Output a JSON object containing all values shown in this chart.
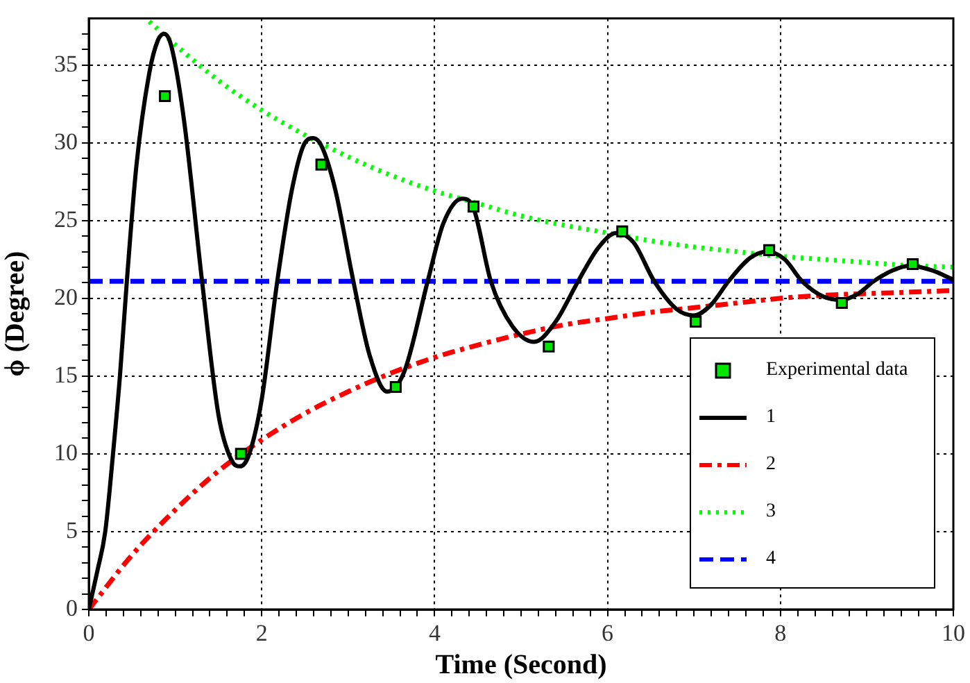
{
  "chart_data": {
    "type": "line",
    "xlabel": "Time (Second)",
    "ylabel": "ϕ (Degree)",
    "xlim": [
      0,
      10
    ],
    "ylim": [
      0,
      38
    ],
    "xticks": [
      0,
      {
        "value": 0.2,
        "label": null
      },
      {
        "value": 0.4,
        "label": null
      },
      {
        "value": 0.6,
        "label": null
      },
      {
        "value": 0.8,
        "label": null
      },
      {
        "value": 1,
        "label": null
      },
      {
        "value": 1.2,
        "label": null
      },
      {
        "value": 1.4,
        "label": null
      },
      {
        "value": 1.6,
        "label": null
      },
      {
        "value": 1.8,
        "label": null
      },
      2,
      {
        "value": 2.2,
        "label": null
      },
      {
        "value": 2.4,
        "label": null
      },
      {
        "value": 2.6,
        "label": null
      },
      {
        "value": 2.8,
        "label": null
      },
      {
        "value": 3,
        "label": null
      },
      {
        "value": 3.2,
        "label": null
      },
      {
        "value": 3.4,
        "label": null
      },
      {
        "value": 3.6,
        "label": null
      },
      {
        "value": 3.8,
        "label": null
      },
      4,
      {
        "value": 4.2,
        "label": null
      },
      {
        "value": 4.4,
        "label": null
      },
      {
        "value": 4.6,
        "label": null
      },
      {
        "value": 4.8,
        "label": null
      },
      {
        "value": 5,
        "label": null
      },
      {
        "value": 5.2,
        "label": null
      },
      {
        "value": 5.4,
        "label": null
      },
      {
        "value": 5.6,
        "label": null
      },
      {
        "value": 5.8,
        "label": null
      },
      6,
      {
        "value": 6.2,
        "label": null
      },
      {
        "value": 6.4,
        "label": null
      },
      {
        "value": 6.6,
        "label": null
      },
      {
        "value": 6.8,
        "label": null
      },
      {
        "value": 7,
        "label": null
      },
      {
        "value": 7.2,
        "label": null
      },
      {
        "value": 7.4,
        "label": null
      },
      {
        "value": 7.6,
        "label": null
      },
      {
        "value": 7.8,
        "label": null
      },
      8,
      {
        "value": 8.2,
        "label": null
      },
      {
        "value": 8.4,
        "label": null
      },
      {
        "value": 8.6,
        "label": null
      },
      {
        "value": 8.8,
        "label": null
      },
      {
        "value": 9,
        "label": null
      },
      {
        "value": 9.2,
        "label": null
      },
      {
        "value": 9.4,
        "label": null
      },
      {
        "value": 9.6,
        "label": null
      },
      {
        "value": 9.8,
        "label": null
      },
      10
    ],
    "yticks": [
      0,
      {
        "value": 1,
        "label": null
      },
      {
        "value": 2,
        "label": null
      },
      {
        "value": 3,
        "label": null
      },
      {
        "value": 4,
        "label": null
      },
      5,
      {
        "value": 6,
        "label": null
      },
      {
        "value": 7,
        "label": null
      },
      {
        "value": 8,
        "label": null
      },
      {
        "value": 9,
        "label": null
      },
      10,
      {
        "value": 11,
        "label": null
      },
      {
        "value": 12,
        "label": null
      },
      {
        "value": 13,
        "label": null
      },
      {
        "value": 14,
        "label": null
      },
      15,
      {
        "value": 16,
        "label": null
      },
      {
        "value": 17,
        "label": null
      },
      {
        "value": 18,
        "label": null
      },
      {
        "value": 19,
        "label": null
      },
      20,
      {
        "value": 21,
        "label": null
      },
      {
        "value": 22,
        "label": null
      },
      {
        "value": 23,
        "label": null
      },
      {
        "value": 24,
        "label": null
      },
      25,
      {
        "value": 26,
        "label": null
      },
      {
        "value": 27,
        "label": null
      },
      {
        "value": 28,
        "label": null
      },
      {
        "value": 29,
        "label": null
      },
      30,
      {
        "value": 31,
        "label": null
      },
      {
        "value": 32,
        "label": null
      },
      {
        "value": 33,
        "label": null
      },
      {
        "value": 34,
        "label": null
      },
      35,
      {
        "value": 36,
        "label": null
      },
      {
        "value": 37,
        "label": null
      }
    ],
    "grid": true,
    "legend": "bottom right",
    "series": [
      {
        "name": "Experimental data",
        "type": "scatter",
        "marker": "square",
        "color": "#00e600",
        "x": [
          0.88,
          1.76,
          2.69,
          3.55,
          4.45,
          5.32,
          6.17,
          7.02,
          7.87,
          8.71,
          9.53
        ],
        "values": [
          33.0,
          10.0,
          28.6,
          14.3,
          25.9,
          16.9,
          24.3,
          18.5,
          23.1,
          19.7,
          22.2
        ]
      },
      {
        "name": "1",
        "line_style": "solid",
        "color": "#000000",
        "x": [
          0,
          0.1,
          0.19,
          0.28,
          0.36,
          0.44,
          0.55,
          0.7,
          0.8,
          0.87,
          0.95,
          1.1,
          1.31,
          1.5,
          1.65,
          1.75,
          1.85,
          2.0,
          2.18,
          2.35,
          2.5,
          2.6,
          2.7,
          2.85,
          3.06,
          3.25,
          3.45,
          3.65,
          3.92,
          4.1,
          4.32,
          4.45,
          4.65,
          4.9,
          5.15,
          5.4,
          5.66,
          5.9,
          6.1,
          6.3,
          6.54,
          6.8,
          7.0,
          7.2,
          7.4,
          7.65,
          7.85,
          8.05,
          8.25,
          8.5,
          8.7,
          8.9,
          9.08,
          9.3,
          9.5,
          9.75,
          10
        ],
        "values": [
          0,
          2.5,
          5,
          10,
          15,
          21.1,
          28.5,
          34.5,
          36.6,
          37.0,
          36.3,
          31.5,
          21.1,
          12.5,
          9.6,
          9.2,
          9.9,
          13.5,
          21.1,
          27,
          30,
          30.3,
          29.7,
          27,
          21.1,
          16.3,
          14.0,
          15.3,
          21.1,
          24.8,
          26.4,
          25.8,
          21.1,
          18.2,
          17.2,
          18.5,
          21.1,
          23.3,
          24.2,
          23.6,
          21.1,
          19.3,
          18.9,
          19.6,
          21.1,
          22.6,
          23.0,
          22.5,
          21.1,
          20.1,
          19.9,
          20.3,
          21.1,
          21.8,
          22.1,
          21.8,
          21.2
        ]
      },
      {
        "name": "2",
        "line_style": "dashdot",
        "color": "#ff0000",
        "x": [
          0,
          0.5,
          1,
          1.5,
          2,
          2.5,
          3,
          3.5,
          4,
          4.5,
          5,
          5.5,
          6,
          6.5,
          7,
          7.5,
          8,
          8.5,
          9,
          9.5,
          10
        ],
        "values": [
          0,
          3.5,
          6.4,
          8.9,
          10.9,
          12.6,
          14.0,
          15.2,
          16.2,
          17.0,
          17.7,
          18.3,
          18.7,
          19.1,
          19.4,
          19.7,
          20.0,
          20.2,
          20.3,
          20.4,
          20.5
        ]
      },
      {
        "name": "3",
        "line_style": "dotted",
        "color": "#00ff00",
        "x": [
          0.7,
          1,
          1.5,
          2,
          2.5,
          3,
          3.5,
          4,
          4.5,
          5,
          5.5,
          6,
          6.5,
          7,
          7.5,
          8,
          8.5,
          9,
          9.5,
          10
        ],
        "values": [
          37.8,
          36.3,
          34.0,
          32.1,
          30.5,
          29.1,
          27.9,
          26.9,
          26.1,
          25.3,
          24.7,
          24.2,
          23.7,
          23.3,
          23.0,
          22.7,
          22.5,
          22.3,
          22.1,
          22.0
        ]
      },
      {
        "name": "4",
        "line_style": "dashed",
        "color": "#0000ff",
        "x": [
          0,
          10
        ],
        "values": [
          21.1,
          21.1
        ]
      }
    ]
  }
}
